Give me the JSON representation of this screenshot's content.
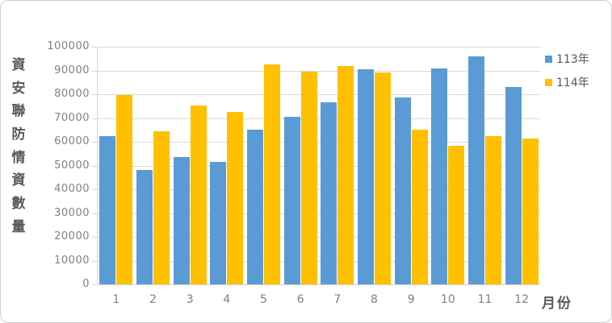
{
  "chart_data": {
    "type": "bar",
    "title": "",
    "categories": [
      "1",
      "2",
      "3",
      "4",
      "5",
      "6",
      "7",
      "8",
      "9",
      "10",
      "11",
      "12"
    ],
    "series": [
      {
        "name": "113年",
        "color": "#5B9BD5",
        "values": [
          62500,
          48000,
          53500,
          51500,
          65000,
          70500,
          76500,
          90400,
          78500,
          90800,
          96000,
          83000
        ]
      },
      {
        "name": "114年",
        "color": "#FFC000",
        "values": [
          79500,
          64500,
          75200,
          72500,
          92400,
          89400,
          91900,
          89100,
          65100,
          58300,
          62400,
          61400
        ]
      }
    ],
    "xlabel": "月份",
    "ylabel": "資安聯防情資數量",
    "ylim": [
      0,
      100000
    ],
    "ytick_step": 10000,
    "yticks": [
      0,
      10000,
      20000,
      30000,
      40000,
      50000,
      60000,
      70000,
      80000,
      90000,
      100000
    ],
    "grid": "horizontal-only",
    "legend_position": "top-right"
  },
  "colors": {
    "background": "#FFFFFF",
    "frame_border": "#CFCDCD",
    "gridline": "#D9D9D9",
    "axis_line": "#D0D0D0",
    "tick_text": "#808080",
    "label_text": "#595959",
    "series_113": "#5B9BD5",
    "series_114": "#FFC000"
  }
}
